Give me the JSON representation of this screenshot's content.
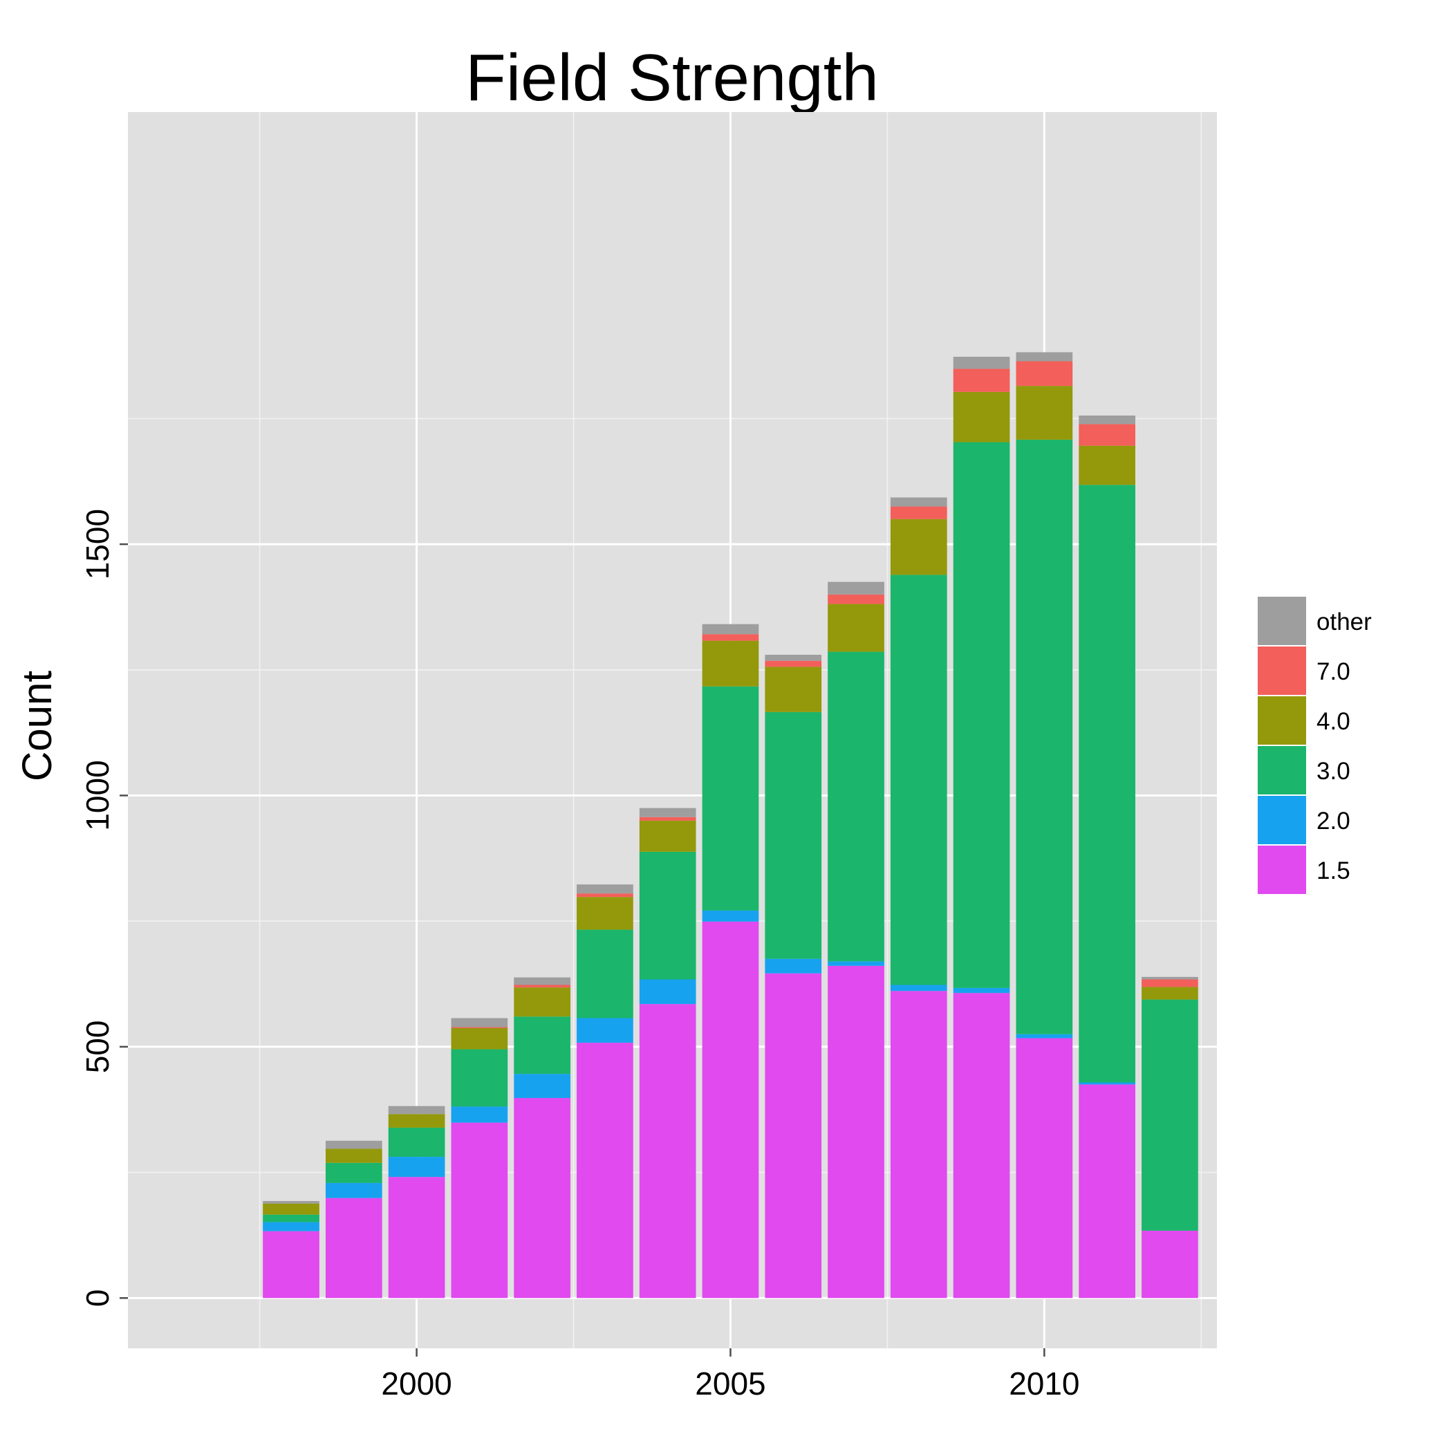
{
  "chart_data": {
    "type": "bar",
    "stacked": true,
    "title": "Field Strength",
    "xlabel": "",
    "ylabel": "Count",
    "x": [
      1998,
      1999,
      2000,
      2001,
      2002,
      2003,
      2004,
      2005,
      2006,
      2007,
      2008,
      2009,
      2010,
      2011,
      2012
    ],
    "x_ticks": [
      2000,
      2005,
      2010
    ],
    "xlim": [
      1995.4,
      2012.75
    ],
    "y_ticks": [
      0,
      500,
      1000,
      1500
    ],
    "ylim": [
      -100,
      2360
    ],
    "grid": true,
    "legend_position": "right",
    "series": [
      {
        "name": "1.5",
        "color": "#E04AEF",
        "values": [
          133,
          199,
          241,
          349,
          398,
          508,
          585,
          749,
          646,
          661,
          611,
          607,
          517,
          425,
          134
        ]
      },
      {
        "name": "2.0",
        "color": "#17A2F0",
        "values": [
          18,
          30,
          40,
          32,
          48,
          49,
          49,
          22,
          29,
          9,
          12,
          10,
          8,
          4,
          0
        ]
      },
      {
        "name": "3.0",
        "color": "#1BB56B",
        "values": [
          15,
          40,
          58,
          114,
          114,
          176,
          254,
          446,
          491,
          616,
          816,
          1086,
          1183,
          1189,
          460
        ]
      },
      {
        "name": "4.0",
        "color": "#93990B",
        "values": [
          22,
          28,
          27,
          42,
          58,
          65,
          62,
          91,
          90,
          95,
          111,
          100,
          107,
          78,
          25
        ]
      },
      {
        "name": "7.0",
        "color": "#F35F5A",
        "values": [
          0,
          0,
          0,
          2,
          5,
          7,
          7,
          13,
          12,
          19,
          25,
          46,
          49,
          43,
          15
        ]
      },
      {
        "name": "other",
        "color": "#9E9E9E",
        "values": [
          5,
          16,
          16,
          18,
          15,
          18,
          18,
          20,
          12,
          25,
          18,
          24,
          18,
          17,
          5
        ]
      }
    ],
    "legend_order": [
      "other",
      "7.0",
      "4.0",
      "3.0",
      "2.0",
      "1.5"
    ]
  }
}
